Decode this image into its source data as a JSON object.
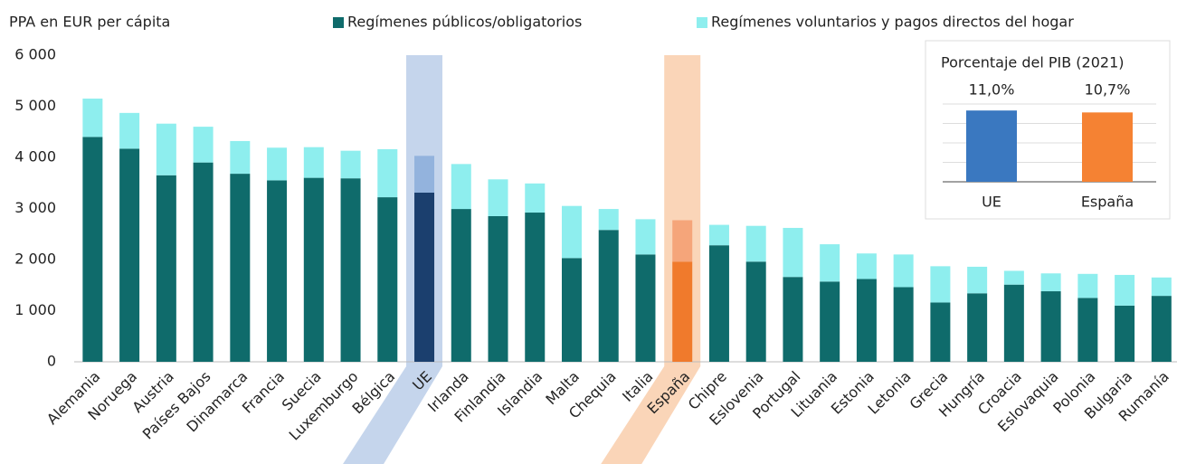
{
  "chart_data": [
    {
      "type": "stacked_bar",
      "y_label": "PPA en EUR per cápita",
      "categories": [
        "Alemania",
        "Noruega",
        "Austria",
        "Países Bajos",
        "Dinamarca",
        "Francia",
        "Suecia",
        "Luxemburgo",
        "Bélgica",
        "UE",
        "Irlanda",
        "Finlandia",
        "Islandia",
        "Malta",
        "Chequia",
        "Italia",
        "España",
        "Chipre",
        "Eslovenia",
        "Portugal",
        "Lituania",
        "Estonia",
        "Letonia",
        "Grecia",
        "Hungría",
        "Croacia",
        "Eslovaquia",
        "Polonia",
        "Bulgaria",
        "Rumanía"
      ],
      "series": [
        {
          "name": "Regímenes públicos/obligatorios",
          "color": "#0f6b6b",
          "values": [
            4400,
            4170,
            3650,
            3900,
            3680,
            3550,
            3600,
            3590,
            3220,
            3310,
            2990,
            2850,
            2920,
            2030,
            2580,
            2100,
            1960,
            2280,
            1960,
            1660,
            1570,
            1620,
            1460,
            1160,
            1340,
            1510,
            1380,
            1250,
            1100,
            1290
          ],
          "colors": {
            "9": "#1b3f6e",
            "16": "#f07a2c"
          }
        },
        {
          "name": "Regímenes voluntarios y pagos directos del hogar",
          "color": "#8eeeee",
          "values": [
            750,
            700,
            1010,
            700,
            640,
            640,
            600,
            540,
            940,
            720,
            880,
            720,
            570,
            1020,
            410,
            690,
            810,
            400,
            700,
            960,
            730,
            500,
            640,
            710,
            520,
            270,
            350,
            470,
            600,
            360
          ],
          "colors": {
            "9": "#93b3dd",
            "16": "#f5a57a"
          }
        }
      ],
      "band_colors": {
        "9": "#c5d5ec",
        "16": "#fad5b8"
      },
      "ylim": [
        0,
        6000
      ],
      "yticks": [
        0,
        {
          "value": 1000,
          "label": "1 000"
        },
        {
          "value": 2000,
          "label": "2 000"
        },
        {
          "value": 3000,
          "label": "3 000"
        },
        {
          "value": 4000,
          "label": "4 000"
        },
        {
          "value": 5000,
          "label": "5 000"
        },
        {
          "value": 6000,
          "label": "6 000"
        }
      ],
      "grid": false
    },
    {
      "type": "bar",
      "title": "Porcentaje del PIB (2021)",
      "categories": [
        "UE",
        "España"
      ],
      "values": [
        11.0,
        10.7
      ],
      "value_labels": [
        "11,0%",
        "10,7%"
      ],
      "colors": [
        "#3a78c0",
        "#f58233"
      ],
      "ylim": [
        0,
        12
      ],
      "yticks": [
        0,
        3,
        6,
        9,
        12
      ],
      "grid": true
    }
  ]
}
